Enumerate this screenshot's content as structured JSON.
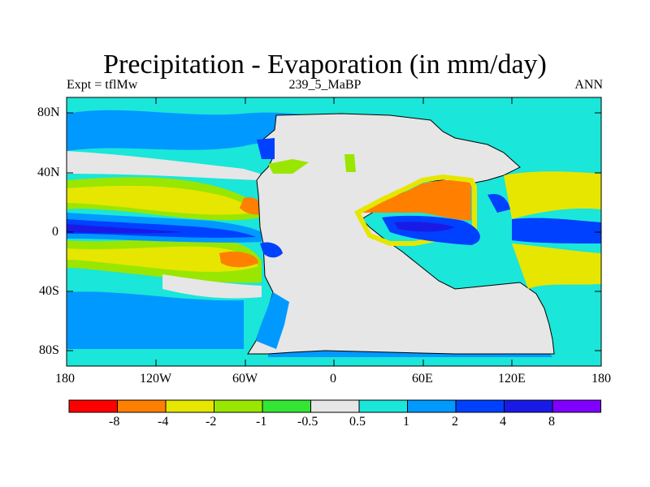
{
  "title": "Precipitation - Evaporation (in mm/day)",
  "subtitle_left": "Expt = tflMw",
  "subtitle_center": "239_5_MaBP",
  "subtitle_right": "ANN",
  "y_ticks": [
    "80N",
    "40N",
    "0",
    "40S",
    "80S"
  ],
  "x_ticks": [
    "180",
    "120W",
    "60W",
    "0",
    "60E",
    "120E",
    "180"
  ],
  "colorbar": {
    "labels": [
      "-8",
      "-4",
      "-2",
      "-1",
      "-0.5",
      "0.5",
      "1",
      "2",
      "4",
      "8"
    ],
    "colors": [
      "#ff0000",
      "#ff8000",
      "#e6e600",
      "#99e600",
      "#33e633",
      "#e6e6e6",
      "#1ae6d9",
      "#0099ff",
      "#0040ff",
      "#1a1ae6",
      "#8000ff"
    ]
  },
  "colors": {
    "land": "#e6e6e6",
    "ocean_base": "#1ae6d9"
  }
}
